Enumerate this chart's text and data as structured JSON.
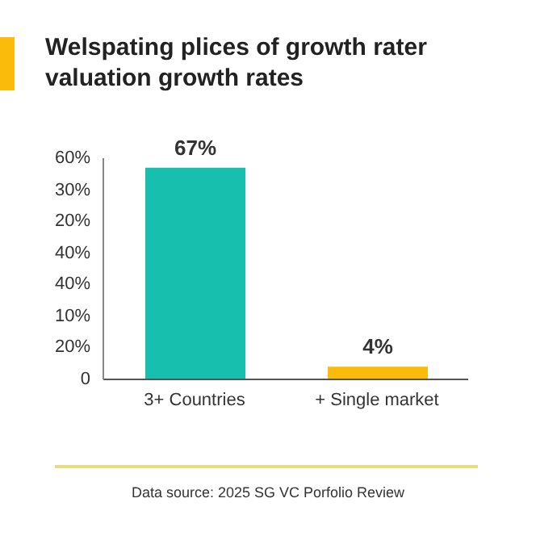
{
  "chart_data": {
    "type": "bar",
    "title": "Welspating plices of growth rater valuation growth rates",
    "categories": [
      "3+ Countries",
      "+ Single market"
    ],
    "values": [
      67,
      4
    ],
    "colors": [
      "#17bfae",
      "#fbbb0b"
    ],
    "value_labels": [
      "67%",
      "4%"
    ],
    "ylim": [
      0,
      70
    ],
    "tick_labels": "x",
    "grid": false,
    "legend": false,
    "annotations": [
      "60%",
      "30%",
      "20%",
      "40%",
      "40%",
      "10%",
      "20%",
      "0",
      "Data source: 2025 SG VC Porfolio Review"
    ]
  }
}
